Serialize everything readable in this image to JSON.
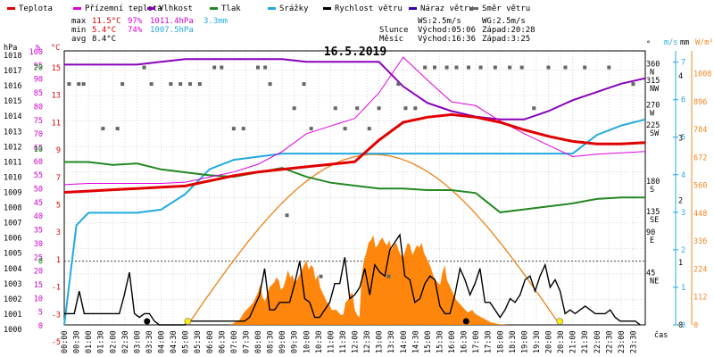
{
  "chart_data": {
    "type": "line",
    "title": "16.5.2019",
    "legend": [
      {
        "label": "Teplota",
        "color": "#e00000"
      },
      {
        "label": "Přízemní teplota",
        "color": "#dd00dd"
      },
      {
        "label": "Vlhkost",
        "color": "#8800bb"
      },
      {
        "label": "Tlak",
        "color": "#228822"
      },
      {
        "label": "Srážky",
        "color": "#22aadd"
      },
      {
        "label": "Rychlost větru",
        "color": "#000000"
      },
      {
        "label": "Náraz větru",
        "color": "#3300aa"
      },
      {
        "label": "Směr větru",
        "color": "#666666"
      }
    ],
    "stats": {
      "max": {
        "label": "max",
        "temp": "11.5°C",
        "hum": "97%",
        "press": "1011.4hPa",
        "rain": "3.3mm"
      },
      "min": {
        "label": "min",
        "temp": "5.4°C",
        "hum": "74%",
        "press": "1007.5hPa"
      },
      "avg": {
        "label": "avg",
        "temp": "8.4°C"
      }
    },
    "wind_info": {
      "ws": "WS:2.5m/s",
      "wg": "WG:2.5m/s"
    },
    "sun": {
      "label": "Slunce",
      "rise": "Východ:05:06",
      "set": "Západ:20:28"
    },
    "moon": {
      "label": "Měsíc",
      "rise": "Východ:16:36",
      "set": "Západ:3:25"
    },
    "axes": {
      "hpa_label": "hPa",
      "hum_label": "%",
      "temp_label": "°C",
      "deg_label": "°",
      "ms_label": "m/s",
      "mm_label": "mm",
      "wm2_label": "W/m²",
      "time_label": "čas",
      "hpa_ticks": [
        "1018",
        "1017",
        "1016",
        "1015",
        "1014",
        "1013",
        "1012",
        "1011",
        "1010",
        "1009",
        "1008",
        "1007",
        "1006",
        "1005",
        "1004",
        "1003",
        "1002",
        "1001",
        "1000"
      ],
      "hum_ticks": [
        "100",
        "95",
        "90",
        "85",
        "80",
        "75",
        "70",
        "65",
        "60",
        "55",
        "50",
        "45",
        "40",
        "35",
        "30",
        "25",
        "20",
        "15",
        "10",
        "5",
        "0"
      ],
      "temp_ticks": [
        "15",
        "13",
        "11",
        "9",
        "7",
        "5",
        "3",
        "1",
        "-1",
        "-3",
        "-5"
      ],
      "temp_ticks_plain": [
        "20",
        "10",
        "0"
      ],
      "dir_ticks": [
        [
          "360",
          "N"
        ],
        [
          "315",
          "NW"
        ],
        [
          "270",
          "W"
        ],
        [
          "225",
          "SW"
        ],
        [
          "180",
          "S"
        ],
        [
          "135",
          "SE"
        ],
        [
          "90",
          "E"
        ],
        [
          "45",
          "NE"
        ]
      ],
      "ms_ticks": [
        "7",
        "6",
        "5",
        "4",
        "3",
        "2",
        "1",
        "0"
      ],
      "mm_ticks": [
        "4",
        "3",
        "2",
        "1",
        "0"
      ],
      "wm2_ticks": [
        "1008",
        "896",
        "784",
        "672",
        "560",
        "448",
        "336",
        "224",
        "112",
        "0"
      ],
      "time_ticks": [
        "00:00",
        "00:30",
        "01:00",
        "01:30",
        "02:00",
        "02:30",
        "03:00",
        "03:30",
        "04:00",
        "04:30",
        "05:00",
        "05:30",
        "06:00",
        "06:30",
        "07:00",
        "07:30",
        "08:00",
        "08:30",
        "09:00",
        "09:30",
        "10:00",
        "10:30",
        "11:00",
        "11:30",
        "12:00",
        "12:30",
        "13:00",
        "13:30",
        "14:00",
        "14:30",
        "15:00",
        "15:30",
        "16:00",
        "16:30",
        "17:00",
        "17:30",
        "18:00",
        "18:30",
        "19:00",
        "19:30",
        "20:00",
        "20:30",
        "21:00",
        "21:30",
        "22:00",
        "22:30",
        "23:00",
        "23:30"
      ]
    },
    "series": {
      "temperature": {
        "name": "Teplota",
        "color": "#e00000",
        "x": [
          0,
          1,
          2,
          3,
          4,
          5,
          6,
          7,
          8,
          9,
          10,
          11,
          12,
          13,
          14,
          15,
          16,
          17,
          18,
          19,
          20,
          21,
          22,
          23,
          24
        ],
        "values": [
          5.4,
          5.5,
          5.6,
          5.7,
          5.8,
          5.9,
          6.3,
          6.7,
          7.0,
          7.2,
          7.4,
          7.6,
          7.8,
          9.5,
          10.9,
          11.3,
          11.5,
          11.3,
          10.9,
          10.3,
          9.8,
          9.4,
          9.2,
          9.2,
          9.3
        ]
      },
      "ground_temp": {
        "name": "Přízemní teplota",
        "color": "#dd00dd",
        "x": [
          0,
          1,
          2,
          3,
          4,
          5,
          6,
          7,
          8,
          9,
          10,
          11,
          12,
          13,
          14,
          15,
          16,
          17,
          18,
          19,
          20,
          21,
          22,
          23,
          24
        ],
        "values": [
          6.0,
          6.1,
          6.1,
          6.1,
          6.1,
          6.2,
          6.6,
          7.0,
          7.6,
          8.6,
          10.0,
          10.6,
          11.2,
          13.2,
          16.0,
          14.2,
          12.5,
          12.2,
          11.0,
          10.0,
          9.1,
          8.2,
          8.4,
          8.5,
          8.6
        ]
      },
      "humidity": {
        "name": "Vlhkost",
        "color": "#8800bb",
        "x": [
          0,
          1,
          2,
          3,
          4,
          5,
          6,
          7,
          8,
          9,
          10,
          11,
          12,
          13,
          14,
          15,
          16,
          17,
          18,
          19,
          20,
          21,
          22,
          23,
          24
        ],
        "values": [
          95,
          95,
          95,
          95,
          96,
          97,
          97,
          97,
          97,
          97,
          96,
          96,
          96,
          96,
          87,
          81,
          78,
          76,
          75,
          75,
          78,
          82,
          85,
          88,
          90
        ]
      },
      "pressure": {
        "name": "Tlak",
        "color": "#228822",
        "x": [
          0,
          1,
          2,
          3,
          4,
          5,
          6,
          7,
          8,
          9,
          10,
          11,
          12,
          13,
          14,
          15,
          16,
          17,
          18,
          19,
          20,
          21,
          22,
          23,
          24
        ],
        "values": [
          1011.0,
          1011.0,
          1010.8,
          1010.9,
          1010.5,
          1010.3,
          1010.1,
          1010.0,
          1010.3,
          1010.6,
          1010.0,
          1009.6,
          1009.4,
          1009.2,
          1009.2,
          1009.1,
          1009.1,
          1008.9,
          1007.6,
          1007.8,
          1008.0,
          1008.2,
          1008.5,
          1008.6,
          1008.6
        ]
      },
      "rain": {
        "name": "Srážky",
        "color": "#22aadd",
        "x": [
          0,
          0.5,
          1,
          2,
          3,
          4,
          5,
          6,
          7,
          8,
          9,
          10,
          11,
          12,
          13,
          14,
          15,
          16,
          17,
          18,
          19,
          20,
          21,
          22,
          23,
          24
        ],
        "values": [
          0,
          1.6,
          1.8,
          1.8,
          1.8,
          1.85,
          2.1,
          2.5,
          2.65,
          2.7,
          2.75,
          2.75,
          2.75,
          2.75,
          2.75,
          2.75,
          2.75,
          2.75,
          2.75,
          2.75,
          2.75,
          2.75,
          2.75,
          3.05,
          3.2,
          3.3
        ]
      }
    },
    "wind_speed": [
      0.3,
      0.3,
      0.3,
      0.9,
      0.3,
      0.3,
      0.3,
      0.3,
      0.3,
      0.3,
      0.3,
      0.3,
      0.8,
      1.4,
      0.3,
      0.2,
      0.3,
      0.3,
      0.1,
      0.0,
      0.0,
      0.0,
      0.0,
      0.0,
      0.0,
      0.1,
      0.1,
      0.1,
      0.1,
      0.1,
      0.1,
      0.1,
      0.1,
      0.1,
      0.1,
      0.1,
      0.1,
      0.2,
      0.5,
      0.8,
      1.5,
      0.4,
      0.4,
      0.6,
      0.6,
      0.6,
      1.1,
      1.7,
      0.7,
      0.6,
      0.2,
      0.2,
      0.4,
      0.6,
      1.1,
      1.1,
      1.8,
      0.7,
      0.8,
      1.0,
      1.5,
      0.8,
      1.6,
      1.4,
      1.3,
      2.0,
      2.2,
      2.4,
      1.3,
      1.2,
      0.6,
      0.7,
      1.1,
      1.3,
      1.2,
      0.5,
      0.3,
      0.3,
      0.8,
      1.5,
      1.2,
      0.8,
      1.1,
      1.5,
      0.6,
      0.6,
      0.4,
      0.2,
      0.4,
      0.7,
      0.6,
      0.8,
      1.2,
      1.3,
      0.9,
      1.3,
      1.6,
      1.0,
      1.2,
      0.9,
      0.3,
      0.4,
      0.3,
      0.4,
      0.5,
      0.4,
      0.3,
      0.3,
      0.3,
      0.4,
      0.2,
      0.1,
      0.1,
      0.1,
      0.1,
      0.0
    ],
    "wind_dir": [
      [
        0.2,
        1
      ],
      [
        0.6,
        1
      ],
      [
        0.8,
        1
      ],
      [
        1.6,
        3
      ],
      [
        2.2,
        3
      ],
      [
        2.4,
        1
      ],
      [
        3.3,
        0
      ],
      [
        3.6,
        1
      ],
      [
        4.4,
        1
      ],
      [
        4.8,
        1
      ],
      [
        5.2,
        1
      ],
      [
        5.6,
        1
      ],
      [
        6.2,
        0
      ],
      [
        6.5,
        0
      ],
      [
        7.0,
        3
      ],
      [
        7.4,
        3
      ],
      [
        8.0,
        0
      ],
      [
        8.3,
        0
      ],
      [
        8.5,
        1
      ],
      [
        9.2,
        5
      ],
      [
        9.5,
        2
      ],
      [
        9.9,
        1
      ],
      [
        10.2,
        3
      ],
      [
        10.6,
        7
      ],
      [
        11.2,
        2
      ],
      [
        11.6,
        3
      ],
      [
        12.1,
        2
      ],
      [
        12.6,
        3
      ],
      [
        13.0,
        2
      ],
      [
        13.4,
        7
      ],
      [
        13.8,
        1
      ],
      [
        14.1,
        2
      ],
      [
        14.5,
        2
      ],
      [
        14.9,
        0
      ],
      [
        15.3,
        0
      ],
      [
        15.8,
        0
      ],
      [
        16.2,
        0
      ],
      [
        16.7,
        0
      ],
      [
        17.2,
        0
      ],
      [
        17.8,
        0
      ],
      [
        18.4,
        0
      ],
      [
        18.9,
        0
      ],
      [
        19.4,
        2
      ],
      [
        20.0,
        0
      ],
      [
        20.7,
        0
      ],
      [
        21.5,
        0
      ],
      [
        22.5,
        0
      ],
      [
        23.5,
        1
      ]
    ],
    "solar": [
      0,
      0,
      0,
      0,
      0,
      0,
      0,
      0,
      0,
      0,
      0,
      0,
      0,
      0,
      0,
      0,
      0,
      0,
      0,
      0,
      0,
      0,
      0,
      0,
      0,
      0,
      0,
      0,
      0,
      0,
      0,
      0,
      0,
      0,
      0,
      0,
      0,
      0,
      0,
      0,
      0,
      0,
      0,
      0,
      0,
      0,
      0,
      0,
      0,
      0,
      0,
      0,
      0,
      0,
      0,
      0,
      0,
      0,
      0,
      0,
      0,
      0,
      0,
      0,
      0,
      0,
      0,
      0,
      0,
      0,
      0,
      0,
      0,
      5,
      10,
      15,
      20,
      35,
      50,
      60,
      70,
      80,
      90,
      110,
      130,
      160,
      110,
      95,
      120,
      150,
      160,
      170,
      190,
      180,
      140,
      150,
      180,
      220,
      190,
      200,
      170,
      180,
      200,
      220,
      240,
      260,
      220,
      240,
      230,
      180,
      200,
      150,
      130,
      110,
      90,
      80,
      60,
      60,
      60,
      50,
      40,
      40,
      90,
      100,
      120,
      130,
      60,
      40,
      30,
      200,
      260,
      290,
      330,
      340,
      360,
      310,
      320,
      340,
      350,
      330,
      320,
      340,
      300,
      320,
      330,
      300,
      280,
      270,
      300,
      330,
      320,
      280,
      300,
      320,
      310,
      330,
      290,
      270,
      250,
      230,
      200,
      180,
      170,
      160,
      210,
      240,
      180,
      160,
      140,
      120,
      100,
      90,
      80,
      70,
      60,
      50,
      55,
      60,
      45,
      40,
      35,
      30,
      25,
      20,
      15,
      10,
      8,
      6,
      4,
      3,
      2,
      1,
      0,
      0,
      0,
      0,
      0,
      0,
      0,
      0,
      0,
      0,
      0,
      0,
      0,
      0,
      0,
      0,
      0,
      0,
      0,
      0,
      0,
      0,
      0,
      0,
      0,
      0,
      0,
      0,
      0,
      0,
      0,
      0,
      0,
      0,
      0,
      0,
      0,
      0,
      0,
      0,
      0,
      0,
      0,
      0,
      0,
      0,
      0,
      0,
      0,
      0,
      0,
      0,
      0,
      0,
      0,
      0,
      0,
      0,
      0,
      0
    ],
    "sun_curve": {
      "rise_hour": 5.1,
      "set_hour": 20.47,
      "peak_wm2": 684
    },
    "markers": {
      "sun_rise_hour": 5.1,
      "sun_set_hour": 20.47,
      "moon_set_hour": 3.42,
      "moon_rise_hour": 16.6
    },
    "ylim_temp": [
      -5,
      16.5
    ],
    "ylim_hum": [
      0,
      100
    ],
    "ylim_press": [
      1000,
      1018.5
    ],
    "ylim_rain": [
      0,
      4.4
    ],
    "ylim_wind": [
      0,
      7.3
    ],
    "ylim_wm2": [
      0,
      1100
    ]
  }
}
